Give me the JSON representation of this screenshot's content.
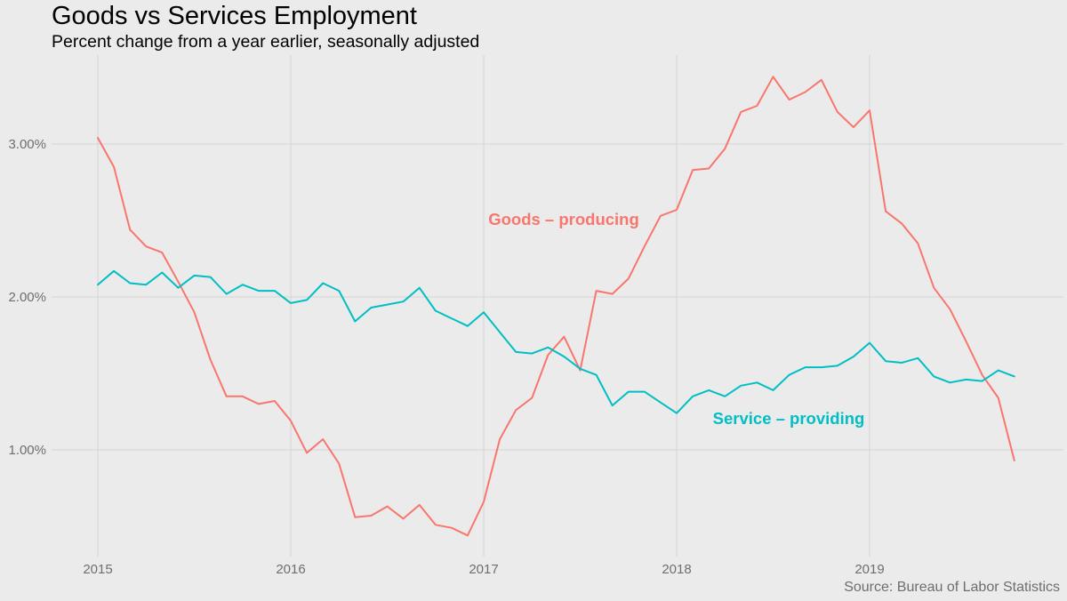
{
  "chart_data": {
    "type": "line",
    "title": "Goods vs Services Employment",
    "subtitle": "Percent change from a year earlier, seasonally adjusted",
    "caption": "Source: Bureau of Labor Statistics",
    "xlabel": "",
    "ylabel": "",
    "x_ticks": [
      "2015",
      "2016",
      "2017",
      "2018",
      "2019"
    ],
    "y_ticks": [
      "1.00%",
      "2.00%",
      "3.00%"
    ],
    "ylim": [
      0.3,
      3.6
    ],
    "grid": true,
    "legend": "none",
    "x": [
      "2015-01",
      "2015-02",
      "2015-03",
      "2015-04",
      "2015-05",
      "2015-06",
      "2015-07",
      "2015-08",
      "2015-09",
      "2015-10",
      "2015-11",
      "2015-12",
      "2016-01",
      "2016-02",
      "2016-03",
      "2016-04",
      "2016-05",
      "2016-06",
      "2016-07",
      "2016-08",
      "2016-09",
      "2016-10",
      "2016-11",
      "2016-12",
      "2017-01",
      "2017-02",
      "2017-03",
      "2017-04",
      "2017-05",
      "2017-06",
      "2017-07",
      "2017-08",
      "2017-09",
      "2017-10",
      "2017-11",
      "2017-12",
      "2018-01",
      "2018-02",
      "2018-03",
      "2018-04",
      "2018-05",
      "2018-06",
      "2018-07",
      "2018-08",
      "2018-09",
      "2018-10",
      "2018-11",
      "2018-12",
      "2019-01",
      "2019-02",
      "2019-03",
      "2019-04",
      "2019-05",
      "2019-06",
      "2019-07",
      "2019-08",
      "2019-09",
      "2019-10"
    ],
    "series": [
      {
        "name": "Goods – producing",
        "color": "#f8766d",
        "values": [
          3.04,
          2.85,
          2.44,
          2.33,
          2.29,
          2.1,
          1.9,
          1.59,
          1.35,
          1.35,
          1.3,
          1.32,
          1.19,
          0.98,
          1.07,
          0.91,
          0.56,
          0.57,
          0.63,
          0.55,
          0.64,
          0.51,
          0.49,
          0.44,
          0.66,
          1.07,
          1.26,
          1.34,
          1.62,
          1.74,
          1.52,
          2.04,
          2.02,
          2.12,
          2.33,
          2.53,
          2.57,
          2.83,
          2.84,
          2.97,
          3.21,
          3.25,
          3.44,
          3.29,
          3.34,
          3.42,
          3.21,
          3.11,
          3.22,
          2.56,
          2.48,
          2.35,
          2.06,
          1.92,
          1.71,
          1.49,
          1.34,
          0.93
        ]
      },
      {
        "name": "Service – providing",
        "color": "#00bfc4",
        "values": [
          2.08,
          2.17,
          2.09,
          2.08,
          2.16,
          2.06,
          2.14,
          2.13,
          2.02,
          2.08,
          2.04,
          2.04,
          1.96,
          1.98,
          2.09,
          2.04,
          1.84,
          1.93,
          1.95,
          1.97,
          2.06,
          1.91,
          1.86,
          1.81,
          1.9,
          1.77,
          1.64,
          1.63,
          1.67,
          1.61,
          1.53,
          1.49,
          1.29,
          1.38,
          1.38,
          1.31,
          1.24,
          1.35,
          1.39,
          1.35,
          1.42,
          1.44,
          1.39,
          1.49,
          1.54,
          1.54,
          1.55,
          1.61,
          1.7,
          1.58,
          1.57,
          1.6,
          1.48,
          1.44,
          1.46,
          1.45,
          1.52,
          1.48
        ]
      }
    ]
  }
}
